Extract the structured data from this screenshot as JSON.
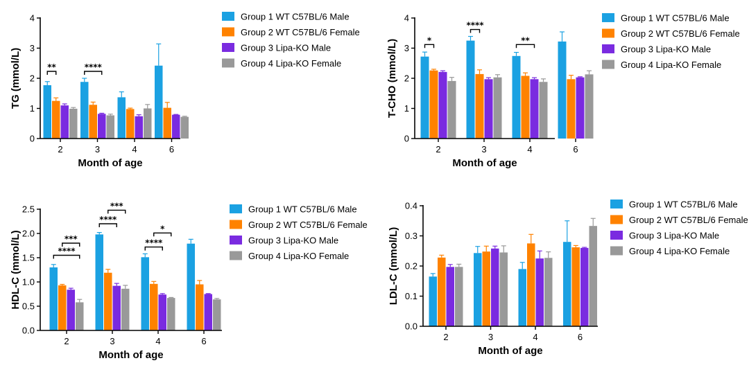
{
  "colors": {
    "Group 1 WT C57BL/6 Male": "#1ba1e2",
    "Group 2 WT C57BL/6 Female": "#ff8200",
    "Group 3 Lipa-KO Male": "#7a2be0",
    "Group 4 Lipa-KO Female": "#999999"
  },
  "chart_data": [
    {
      "type": "bar",
      "categories": [
        "2",
        "3",
        "4",
        "6"
      ],
      "xlabel": "Month of age",
      "ylabel": "TG (mmol/L)",
      "ylim": [
        0,
        4
      ],
      "yticks": [
        "0",
        "1",
        "2",
        "3",
        "4"
      ],
      "legend_position": "right",
      "series": [
        {
          "name": "Group 1 WT C57BL/6 Male",
          "values": [
            1.77,
            1.88,
            1.37,
            2.42
          ],
          "errors": [
            0.12,
            0.12,
            0.18,
            0.72
          ]
        },
        {
          "name": "Group 2 WT C57BL/6 Female",
          "values": [
            1.25,
            1.12,
            0.98,
            1.02
          ],
          "errors": [
            0.1,
            0.09,
            0.03,
            0.18
          ]
        },
        {
          "name": "Group 3 Lipa-KO Male",
          "values": [
            1.1,
            0.82,
            0.74,
            0.79
          ],
          "errors": [
            0.05,
            0.02,
            0.05,
            0.01
          ]
        },
        {
          "name": "Group 4 Lipa-KO Female",
          "values": [
            0.99,
            0.77,
            1.0,
            0.72
          ],
          "errors": [
            0.04,
            0.04,
            0.13,
            0.02
          ]
        }
      ],
      "significance": [
        {
          "category": 0,
          "from": 0,
          "to": 1,
          "y": 2.23,
          "label": "**"
        },
        {
          "category": 1,
          "from": 0,
          "to": 2,
          "y": 2.23,
          "label": "****"
        }
      ]
    },
    {
      "type": "bar",
      "categories": [
        "2",
        "3",
        "4",
        "6"
      ],
      "xlabel": "Month of age",
      "ylabel": "T-CHO (mmol/L)",
      "ylim": [
        0,
        4
      ],
      "yticks": [
        "0",
        "1",
        "2",
        "3",
        "4"
      ],
      "legend_position": "right",
      "series": [
        {
          "name": "Group 1 WT C57BL/6 Male",
          "values": [
            2.72,
            3.25,
            2.74,
            3.22
          ],
          "errors": [
            0.15,
            0.14,
            0.12,
            0.32
          ]
        },
        {
          "name": "Group 2 WT C57BL/6 Female",
          "values": [
            2.26,
            2.14,
            2.08,
            1.97
          ],
          "errors": [
            0.04,
            0.14,
            0.1,
            0.13
          ]
        },
        {
          "name": "Group 3 Lipa-KO Male",
          "values": [
            2.21,
            1.97,
            1.97,
            2.03
          ],
          "errors": [
            0.04,
            0.05,
            0.05,
            0.02
          ]
        },
        {
          "name": "Group 4 Lipa-KO Female",
          "values": [
            1.91,
            2.03,
            1.88,
            2.13
          ],
          "errors": [
            0.12,
            0.09,
            0.1,
            0.12
          ]
        }
      ],
      "significance": [
        {
          "category": 0,
          "from": 0,
          "to": 1,
          "y": 3.12,
          "label": "*"
        },
        {
          "category": 1,
          "from": 0,
          "to": 1,
          "y": 3.62,
          "label": "****"
        },
        {
          "category": 2,
          "from": 0,
          "to": 2,
          "y": 3.12,
          "label": "**"
        }
      ]
    },
    {
      "type": "bar",
      "categories": [
        "2",
        "3",
        "4",
        "6"
      ],
      "xlabel": "Month of age",
      "ylabel": "HDL-C (mmol/L)",
      "ylim": [
        0,
        2.5
      ],
      "yticks": [
        "0.0",
        "0.5",
        "1.0",
        "1.5",
        "2.0",
        "2.5"
      ],
      "legend_position": "right",
      "series": [
        {
          "name": "Group 1 WT C57BL/6 Male",
          "values": [
            1.3,
            1.98,
            1.51,
            1.79
          ],
          "errors": [
            0.06,
            0.04,
            0.07,
            0.09
          ]
        },
        {
          "name": "Group 2 WT C57BL/6 Female",
          "values": [
            0.93,
            1.19,
            0.96,
            0.95
          ],
          "errors": [
            0.02,
            0.07,
            0.05,
            0.08
          ]
        },
        {
          "name": "Group 3 Lipa-KO Male",
          "values": [
            0.84,
            0.92,
            0.74,
            0.75
          ],
          "errors": [
            0.03,
            0.05,
            0.02,
            0.01
          ]
        },
        {
          "name": "Group 4 Lipa-KO Female",
          "values": [
            0.58,
            0.86,
            0.67,
            0.64
          ],
          "errors": [
            0.06,
            0.07,
            0.01,
            0.02
          ]
        }
      ],
      "significance": [
        {
          "category": 0,
          "from": 0,
          "to": 3,
          "y": 1.55,
          "label": "****"
        },
        {
          "category": 0,
          "from": 1,
          "to": 3,
          "y": 1.8,
          "label": "***"
        },
        {
          "category": 1,
          "from": 0,
          "to": 2,
          "y": 2.2,
          "label": "****"
        },
        {
          "category": 1,
          "from": 1,
          "to": 3,
          "y": 2.48,
          "label": "***"
        },
        {
          "category": 2,
          "from": 0,
          "to": 2,
          "y": 1.72,
          "label": "****"
        },
        {
          "category": 2,
          "from": 1,
          "to": 3,
          "y": 2.01,
          "label": "*"
        }
      ]
    },
    {
      "type": "bar",
      "categories": [
        "2",
        "3",
        "4",
        "6"
      ],
      "xlabel": "Month of age",
      "ylabel": "LDL-C (mmol/L)",
      "ylim": [
        0,
        0.4
      ],
      "yticks": [
        "0.0",
        "0.1",
        "0.2",
        "0.3",
        "0.4"
      ],
      "legend_position": "right",
      "series": [
        {
          "name": "Group 1 WT C57BL/6 Male",
          "values": [
            0.165,
            0.243,
            0.19,
            0.28
          ],
          "errors": [
            0.01,
            0.022,
            0.022,
            0.07
          ]
        },
        {
          "name": "Group 2 WT C57BL/6 Female",
          "values": [
            0.228,
            0.248,
            0.275,
            0.262
          ],
          "errors": [
            0.008,
            0.018,
            0.03,
            0.006
          ]
        },
        {
          "name": "Group 3 Lipa-KO Male",
          "values": [
            0.197,
            0.258,
            0.225,
            0.26
          ],
          "errors": [
            0.008,
            0.008,
            0.025,
            0.002
          ]
        },
        {
          "name": "Group 4 Lipa-KO Female",
          "values": [
            0.197,
            0.245,
            0.227,
            0.333
          ],
          "errors": [
            0.009,
            0.022,
            0.02,
            0.025
          ]
        }
      ],
      "significance": []
    }
  ]
}
